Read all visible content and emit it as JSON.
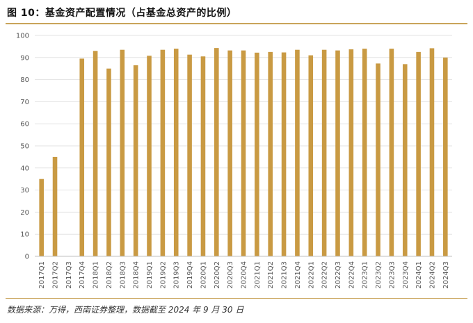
{
  "header": {
    "title": "图 10：基金资产配置情况（占基金总资产的比例）"
  },
  "footer": {
    "source": "数据来源：万得，西南证券整理，数据截至 2024 年 9 月 30 日"
  },
  "chart_data": {
    "type": "bar",
    "title": "图 10：基金资产配置情况（占基金总资产的比例）",
    "xlabel": "",
    "ylabel": "",
    "ylim": [
      0,
      100
    ],
    "yticks": [
      0,
      10,
      20,
      30,
      40,
      50,
      60,
      70,
      80,
      90,
      100
    ],
    "grid": true,
    "bar_color": "#c99a43",
    "categories": [
      "2017Q1",
      "2017Q2",
      "2017Q3",
      "2017Q4",
      "2018Q1",
      "2018Q2",
      "2018Q3",
      "2018Q4",
      "2019Q1",
      "2019Q2",
      "2019Q3",
      "2019Q4",
      "2020Q1",
      "2020Q2",
      "2020Q3",
      "2020Q4",
      "2021Q1",
      "2021Q2",
      "2021Q3",
      "2021Q4",
      "2022Q1",
      "2022Q2",
      "2022Q3",
      "2022Q4",
      "2023Q1",
      "2023Q2",
      "2023Q3",
      "2023Q4",
      "2024Q1",
      "2024Q2",
      "2024Q3"
    ],
    "values": [
      35,
      45,
      null,
      89.5,
      93,
      85,
      93.5,
      86.5,
      90.8,
      93.5,
      94,
      91.3,
      90.5,
      94.3,
      93.2,
      93.2,
      92.2,
      92.5,
      92.3,
      93.5,
      91,
      93.5,
      93.2,
      93.7,
      94,
      87.3,
      94,
      87,
      92.5,
      94.2,
      90
    ]
  }
}
